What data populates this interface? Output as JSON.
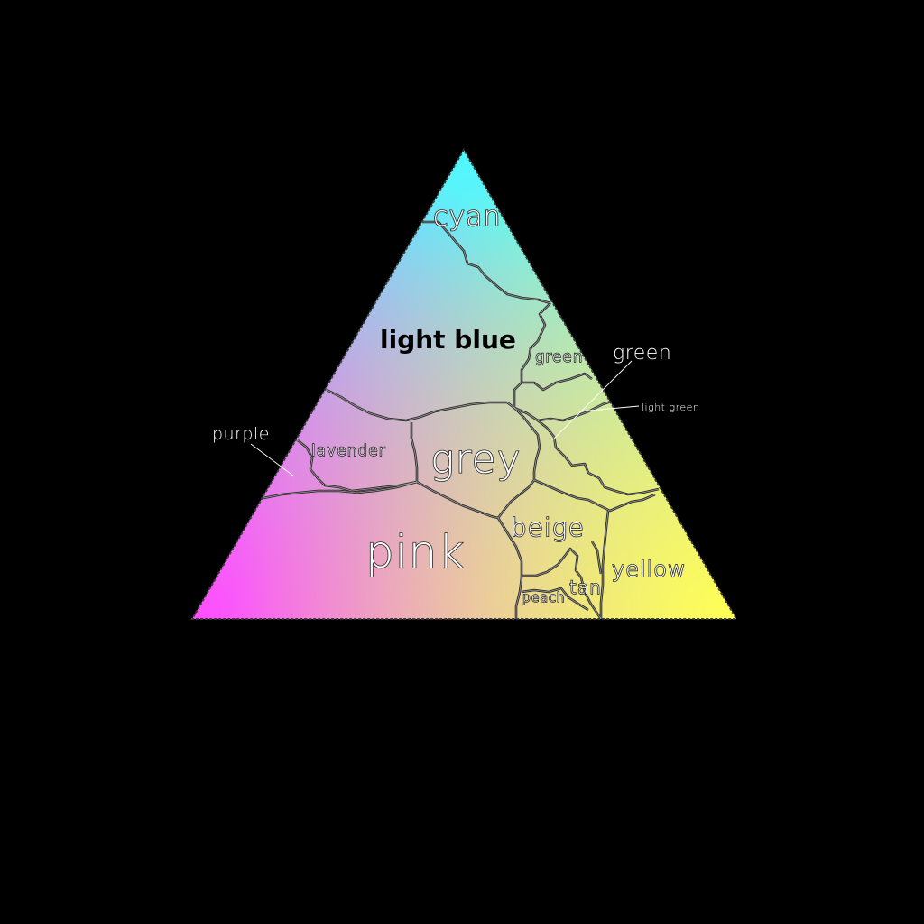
{
  "diagram": {
    "corner_colors": {
      "top": "#4ff8ff",
      "left": "#ff4dff",
      "right": "#ffff55",
      "center": "#c8c8c8"
    },
    "regions": [
      {
        "name": "cyan",
        "label": "cyan"
      },
      {
        "name": "light-blue",
        "label": "light blue"
      },
      {
        "name": "green-inner",
        "label": "green"
      },
      {
        "name": "green-outer",
        "label": "green"
      },
      {
        "name": "light-green",
        "label": "light green"
      },
      {
        "name": "purple",
        "label": "purple"
      },
      {
        "name": "lavender",
        "label": "lavender"
      },
      {
        "name": "grey",
        "label": "grey"
      },
      {
        "name": "pink",
        "label": "pink"
      },
      {
        "name": "beige",
        "label": "beige"
      },
      {
        "name": "yellow",
        "label": "yellow"
      },
      {
        "name": "tan",
        "label": "tan"
      },
      {
        "name": "peach",
        "label": "peach"
      }
    ]
  }
}
